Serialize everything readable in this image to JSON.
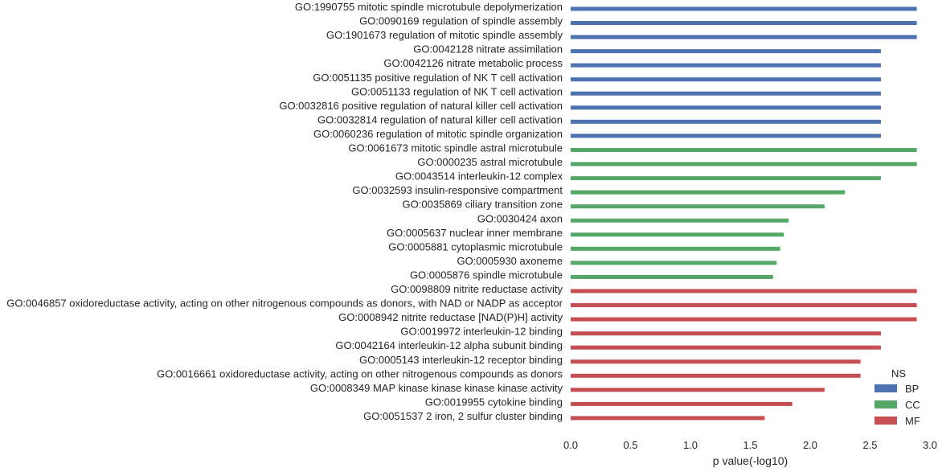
{
  "chart_data": {
    "type": "bar",
    "orientation": "horizontal",
    "xlabel": "p value(-log10)",
    "xlim": [
      0,
      3.0
    ],
    "xticks": [
      "0.0",
      "0.5",
      "1.0",
      "1.5",
      "2.0",
      "2.5",
      "3.0"
    ],
    "grid": false,
    "legend": {
      "title": "NS",
      "placement": "bottom-right",
      "entries": [
        {
          "name": "BP",
          "color": "#4c72b0"
        },
        {
          "name": "CC",
          "color": "#55a868"
        },
        {
          "name": "MF",
          "color": "#c44e52"
        }
      ]
    },
    "categories": [
      {
        "label": "GO:1990755 mitotic spindle microtubule depolymerization",
        "value": 2.89,
        "ns": "BP"
      },
      {
        "label": "GO:0090169 regulation of spindle assembly",
        "value": 2.89,
        "ns": "BP"
      },
      {
        "label": "GO:1901673 regulation of mitotic spindle assembly",
        "value": 2.89,
        "ns": "BP"
      },
      {
        "label": "GO:0042128 nitrate assimilation",
        "value": 2.59,
        "ns": "BP"
      },
      {
        "label": "GO:0042126 nitrate metabolic process",
        "value": 2.59,
        "ns": "BP"
      },
      {
        "label": "GO:0051135 positive regulation of NK T cell activation",
        "value": 2.59,
        "ns": "BP"
      },
      {
        "label": "GO:0051133 regulation of NK T cell activation",
        "value": 2.59,
        "ns": "BP"
      },
      {
        "label": "GO:0032816 positive regulation of natural killer cell activation",
        "value": 2.59,
        "ns": "BP"
      },
      {
        "label": "GO:0032814 regulation of natural killer cell activation",
        "value": 2.59,
        "ns": "BP"
      },
      {
        "label": "GO:0060236 regulation of mitotic spindle organization",
        "value": 2.59,
        "ns": "BP"
      },
      {
        "label": "GO:0061673 mitotic spindle astral microtubule",
        "value": 2.89,
        "ns": "CC"
      },
      {
        "label": "GO:0000235 astral microtubule",
        "value": 2.89,
        "ns": "CC"
      },
      {
        "label": "GO:0043514 interleukin-12 complex",
        "value": 2.59,
        "ns": "CC"
      },
      {
        "label": "GO:0032593 insulin-responsive compartment",
        "value": 2.29,
        "ns": "CC"
      },
      {
        "label": "GO:0035869 ciliary transition zone",
        "value": 2.12,
        "ns": "CC"
      },
      {
        "label": "GO:0030424 axon",
        "value": 1.82,
        "ns": "CC"
      },
      {
        "label": "GO:0005637 nuclear inner membrane",
        "value": 1.78,
        "ns": "CC"
      },
      {
        "label": "GO:0005881 cytoplasmic microtubule",
        "value": 1.75,
        "ns": "CC"
      },
      {
        "label": "GO:0005930 axoneme",
        "value": 1.72,
        "ns": "CC"
      },
      {
        "label": "GO:0005876 spindle microtubule",
        "value": 1.69,
        "ns": "CC"
      },
      {
        "label": "GO:0098809 nitrite reductase activity",
        "value": 2.89,
        "ns": "MF"
      },
      {
        "label": "GO:0046857 oxidoreductase activity, acting on other nitrogenous compounds as donors, with NAD or NADP as acceptor",
        "value": 2.89,
        "ns": "MF"
      },
      {
        "label": "GO:0008942 nitrite reductase [NAD(P)H] activity",
        "value": 2.89,
        "ns": "MF"
      },
      {
        "label": "GO:0019972 interleukin-12 binding",
        "value": 2.59,
        "ns": "MF"
      },
      {
        "label": "GO:0042164 interleukin-12 alpha subunit binding",
        "value": 2.59,
        "ns": "MF"
      },
      {
        "label": "GO:0005143 interleukin-12 receptor binding",
        "value": 2.42,
        "ns": "MF"
      },
      {
        "label": "GO:0016661 oxidoreductase activity, acting on other nitrogenous compounds as donors",
        "value": 2.42,
        "ns": "MF"
      },
      {
        "label": "GO:0008349 MAP kinase kinase kinase kinase activity",
        "value": 2.12,
        "ns": "MF"
      },
      {
        "label": "GO:0019955 cytokine binding",
        "value": 1.85,
        "ns": "MF"
      },
      {
        "label": "GO:0051537 2 iron, 2 sulfur cluster binding",
        "value": 1.62,
        "ns": "MF"
      }
    ]
  }
}
